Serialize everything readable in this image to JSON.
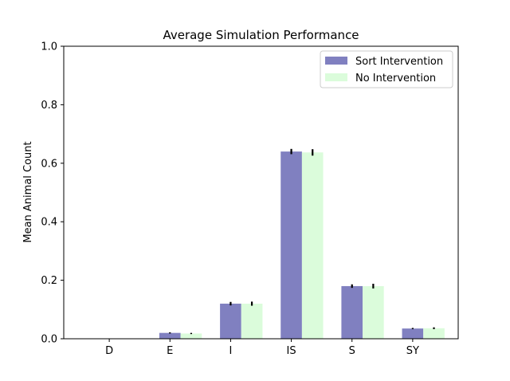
{
  "chart_data": {
    "type": "bar",
    "title": "Average Simulation Performance",
    "xlabel": "",
    "ylabel": "Mean Animal Count",
    "ylim": [
      0,
      1.0
    ],
    "yticks": [
      "0.0",
      "0.2",
      "0.4",
      "0.6",
      "0.8",
      "1.0"
    ],
    "categories": [
      "D",
      "E",
      "I",
      "IS",
      "S",
      "SY"
    ],
    "series": [
      {
        "name": "Sort Intervention",
        "color": "#8080c0",
        "values": [
          0.0,
          0.02,
          0.12,
          0.64,
          0.18,
          0.035
        ],
        "errors": [
          0.001,
          0.002,
          0.006,
          0.009,
          0.006,
          0.002
        ]
      },
      {
        "name": "No Intervention",
        "color": "#dbfcdb",
        "values": [
          0.0,
          0.018,
          0.12,
          0.637,
          0.18,
          0.036
        ],
        "errors": [
          0.001,
          0.002,
          0.007,
          0.011,
          0.008,
          0.003
        ]
      }
    ],
    "legend_position": "top-right",
    "grid": false
  }
}
